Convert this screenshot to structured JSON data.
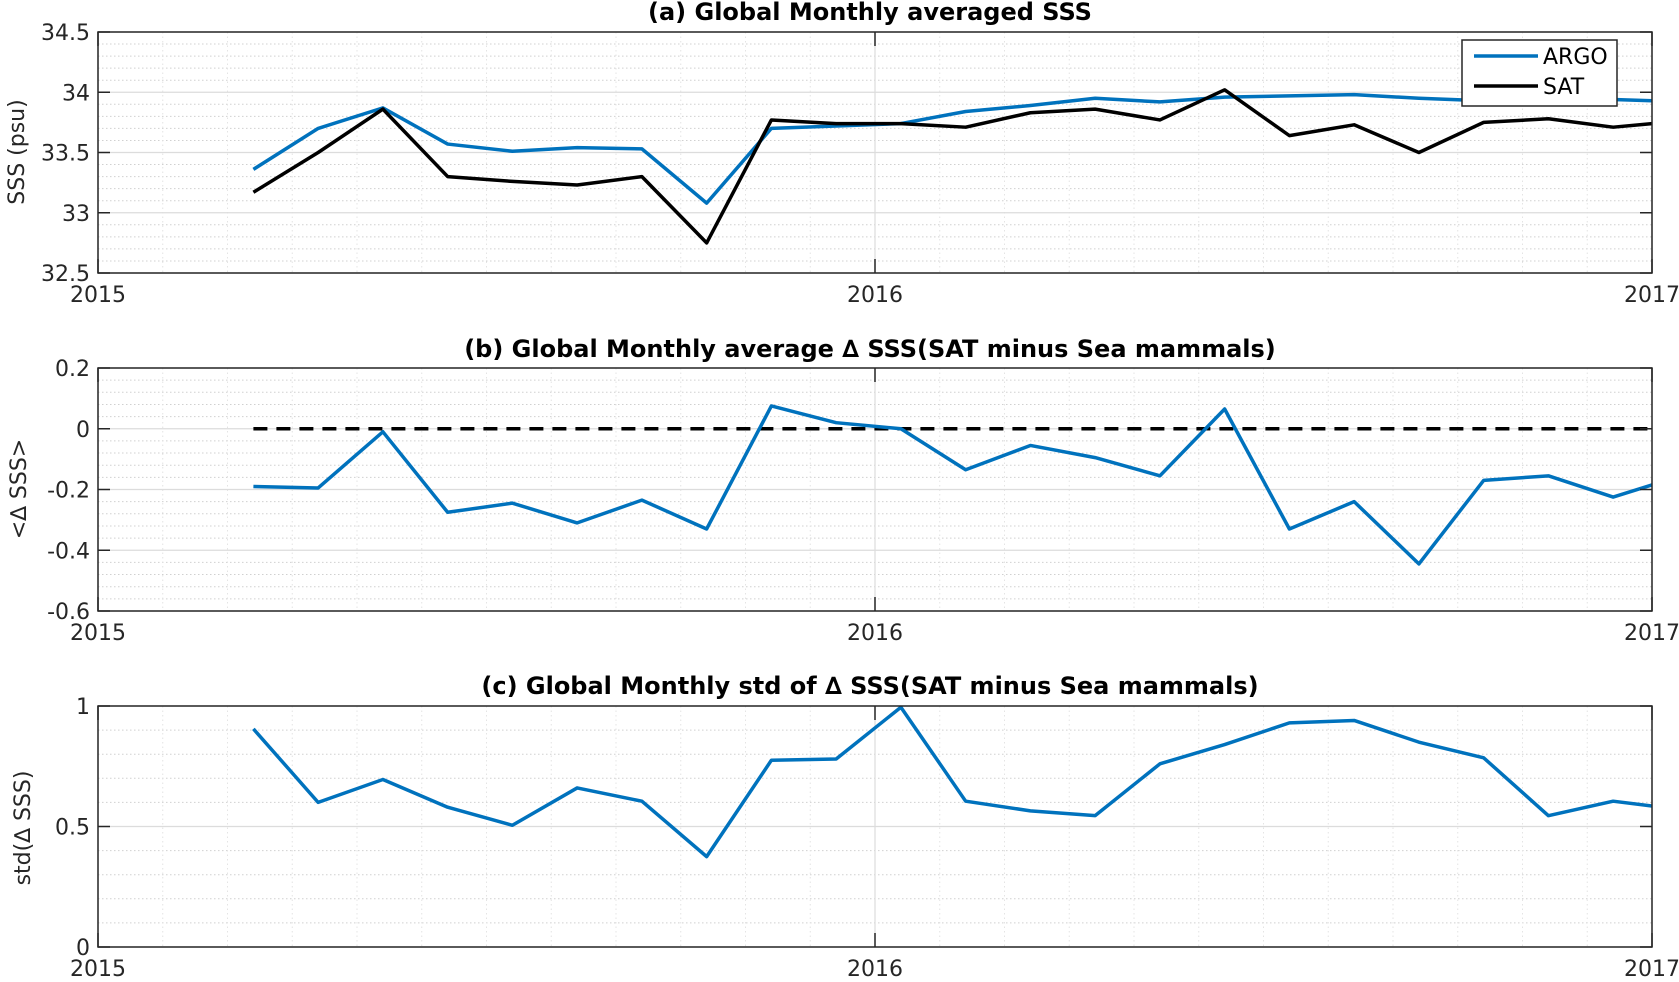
{
  "chart_data": [
    {
      "type": "line",
      "title": "(a) Global Monthly averaged SSS",
      "ylabel": "SSS (psu)",
      "xlabel": "",
      "x_ticks": [
        "2015",
        "2016",
        "2017"
      ],
      "y_ticks": [
        "32.5",
        "33",
        "33.5",
        "34",
        "34.5"
      ],
      "xlim": [
        0,
        24
      ],
      "ylim": [
        32.5,
        34.5
      ],
      "grid": true,
      "minor_grid": true,
      "legend": "top-right",
      "x": [
        2.4,
        3.4,
        4.4,
        5.4,
        6.4,
        7.4,
        8.4,
        9.4,
        10.4,
        11.4,
        12.4,
        13.4,
        14.4,
        15.4,
        16.4,
        17.4,
        18.4,
        19.4,
        20.4,
        21.4,
        22.4,
        23.4,
        24
      ],
      "series": [
        {
          "name": "ARGO",
          "color": "#0072BD",
          "values": [
            33.36,
            33.7,
            33.87,
            33.57,
            33.51,
            33.54,
            33.53,
            33.08,
            33.7,
            33.72,
            33.74,
            33.84,
            33.89,
            33.95,
            33.92,
            33.96,
            33.97,
            33.98,
            33.95,
            33.93,
            33.93,
            33.94,
            33.93
          ]
        },
        {
          "name": "SAT",
          "color": "#000000",
          "values": [
            33.17,
            33.5,
            33.86,
            33.3,
            33.26,
            33.23,
            33.3,
            32.75,
            33.77,
            33.74,
            33.74,
            33.71,
            33.83,
            33.86,
            33.77,
            34.02,
            33.64,
            33.73,
            33.5,
            33.75,
            33.78,
            33.71,
            33.74
          ]
        }
      ]
    },
    {
      "type": "line",
      "title": "(b) Global Monthly average ∆ SSS(SAT minus Sea mammals)",
      "ylabel": "<∆ SSS>",
      "xlabel": "",
      "x_ticks": [
        "2015",
        "2016",
        "2017"
      ],
      "y_ticks": [
        "-0.6",
        "-0.4",
        "-0.2",
        "0",
        "0.2"
      ],
      "xlim": [
        0,
        24
      ],
      "ylim": [
        -0.6,
        0.2
      ],
      "grid": true,
      "minor_grid": true,
      "reference_line": {
        "y": 0,
        "x_start": 2.4,
        "x_end": 24,
        "style": "dashed",
        "color": "#000000"
      },
      "x": [
        2.4,
        3.4,
        4.4,
        5.4,
        6.4,
        7.4,
        8.4,
        9.4,
        10.4,
        11.4,
        12.4,
        13.4,
        14.4,
        15.4,
        16.4,
        17.4,
        18.4,
        19.4,
        20.4,
        21.4,
        22.4,
        23.4,
        24
      ],
      "series": [
        {
          "color": "#0072BD",
          "values": [
            -0.19,
            -0.195,
            -0.01,
            -0.275,
            -0.245,
            -0.31,
            -0.235,
            -0.33,
            0.075,
            0.02,
            0.0,
            -0.135,
            -0.055,
            -0.095,
            -0.155,
            0.065,
            -0.33,
            -0.24,
            -0.445,
            -0.17,
            -0.155,
            -0.225,
            -0.185
          ]
        }
      ]
    },
    {
      "type": "line",
      "title": "(c) Global Monthly std of ∆ SSS(SAT minus Sea mammals)",
      "ylabel": "std(∆ SSS)",
      "xlabel": "",
      "x_ticks": [
        "2015",
        "2016",
        "2017"
      ],
      "y_ticks": [
        "0",
        "0.5",
        "1"
      ],
      "xlim": [
        0,
        24
      ],
      "ylim": [
        0,
        1
      ],
      "grid": true,
      "minor_grid": true,
      "x": [
        2.4,
        3.4,
        4.4,
        5.4,
        6.4,
        7.4,
        8.4,
        9.4,
        10.4,
        11.4,
        12.4,
        13.4,
        14.4,
        15.4,
        16.4,
        17.4,
        18.4,
        19.4,
        20.4,
        21.4,
        22.4,
        23.4,
        24
      ],
      "series": [
        {
          "color": "#0072BD",
          "values": [
            0.905,
            0.6,
            0.695,
            0.58,
            0.505,
            0.66,
            0.605,
            0.375,
            0.775,
            0.78,
            0.995,
            0.605,
            0.565,
            0.545,
            0.76,
            0.84,
            0.93,
            0.94,
            0.85,
            0.785,
            0.545,
            0.605,
            0.585
          ]
        }
      ]
    }
  ]
}
